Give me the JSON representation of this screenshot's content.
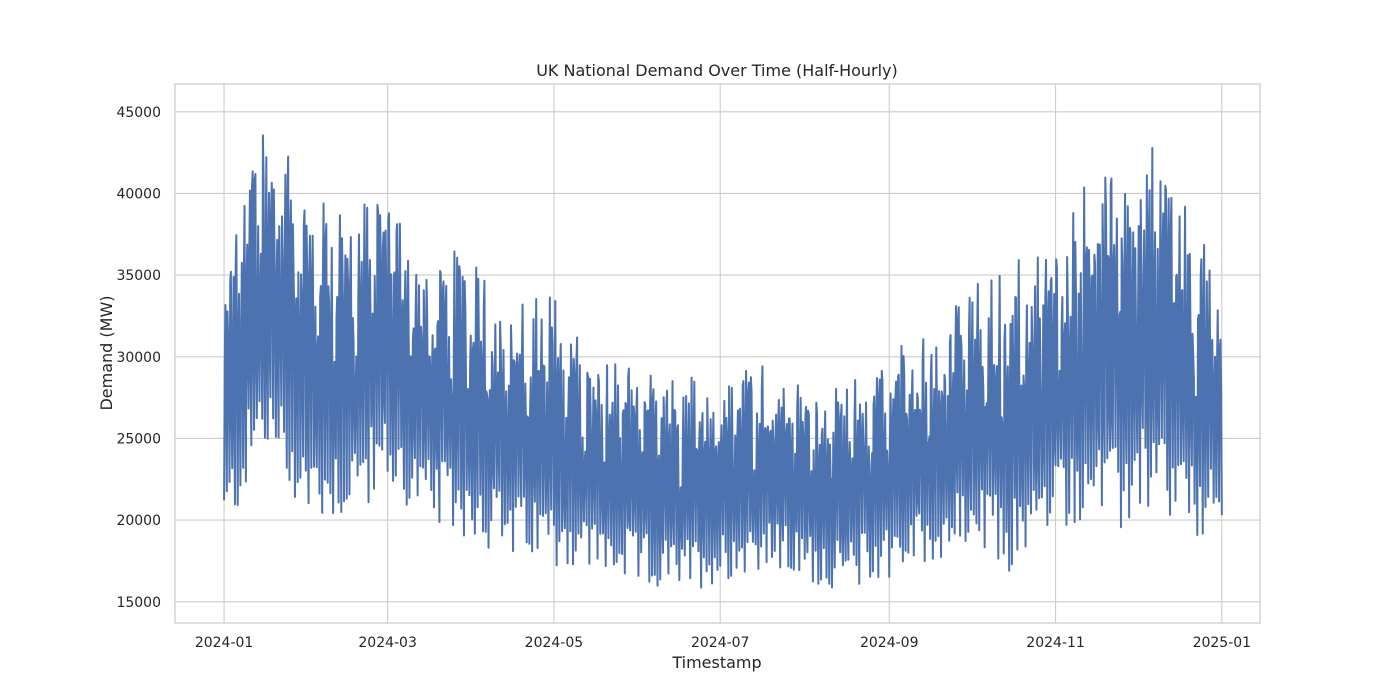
{
  "chart_data": {
    "type": "line",
    "title": "UK National Demand Over Time (Half-Hourly)",
    "xlabel": "Timestamp",
    "ylabel": "Demand (MW)",
    "x_ticks": [
      "2024-01",
      "2024-03",
      "2024-05",
      "2024-07",
      "2024-09",
      "2024-11",
      "2025-01"
    ],
    "y_ticks": [
      15000,
      20000,
      25000,
      30000,
      35000,
      40000,
      45000
    ],
    "xlim": [
      "2023-12-14",
      "2025-01-15"
    ],
    "ylim": [
      13700,
      46700
    ],
    "grid": true,
    "line_color": "#4c72b0",
    "series": [
      {
        "sampling": "approximate daily minimum and maximum envelope (read from chart)",
        "points": [
          {
            "date": "2024-01-01",
            "min": 18100,
            "max": 35000
          },
          {
            "date": "2024-01-15",
            "min": 23500,
            "max": 45200
          },
          {
            "date": "2024-02-01",
            "min": 19300,
            "max": 40000
          },
          {
            "date": "2024-02-15",
            "min": 19700,
            "max": 39000
          },
          {
            "date": "2024-03-01",
            "min": 21200,
            "max": 40800
          },
          {
            "date": "2024-03-15",
            "min": 19400,
            "max": 36000
          },
          {
            "date": "2024-04-01",
            "min": 18400,
            "max": 36800
          },
          {
            "date": "2024-04-15",
            "min": 17200,
            "max": 33600
          },
          {
            "date": "2024-05-01",
            "min": 16900,
            "max": 33900
          },
          {
            "date": "2024-05-15",
            "min": 16500,
            "max": 30200
          },
          {
            "date": "2024-06-01",
            "min": 15600,
            "max": 29500
          },
          {
            "date": "2024-06-15",
            "min": 15200,
            "max": 28800
          },
          {
            "date": "2024-07-01",
            "min": 15900,
            "max": 29000
          },
          {
            "date": "2024-07-15",
            "min": 16700,
            "max": 30300
          },
          {
            "date": "2024-08-01",
            "min": 16000,
            "max": 28300
          },
          {
            "date": "2024-08-15",
            "min": 15400,
            "max": 28000
          },
          {
            "date": "2024-09-01",
            "min": 16200,
            "max": 30800
          },
          {
            "date": "2024-09-15",
            "min": 16800,
            "max": 31600
          },
          {
            "date": "2024-10-01",
            "min": 17800,
            "max": 34400
          },
          {
            "date": "2024-10-15",
            "min": 16100,
            "max": 36000
          },
          {
            "date": "2024-11-01",
            "min": 19000,
            "max": 37400
          },
          {
            "date": "2024-11-15",
            "min": 19500,
            "max": 42000
          },
          {
            "date": "2024-11-22",
            "min": 17500,
            "max": 43500
          },
          {
            "date": "2024-12-01",
            "min": 20000,
            "max": 42000
          },
          {
            "date": "2024-12-10",
            "min": 19500,
            "max": 43300
          },
          {
            "date": "2024-12-20",
            "min": 18200,
            "max": 38500
          },
          {
            "date": "2025-01-01",
            "min": 18400,
            "max": 35100
          }
        ]
      }
    ]
  }
}
